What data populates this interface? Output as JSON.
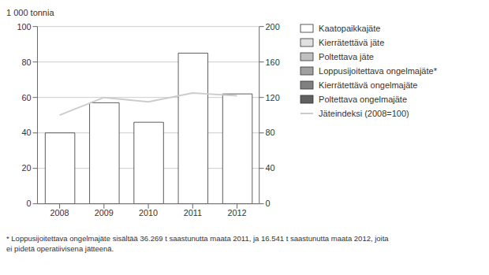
{
  "chart_data": {
    "type": "bar",
    "y_label": "1 000 tonnia",
    "categories": [
      "2008",
      "2009",
      "2010",
      "2011",
      "2012"
    ],
    "stacked": true,
    "grid": true,
    "legend": "right",
    "ylim": [
      0,
      100
    ],
    "yticks": [
      0,
      20,
      40,
      60,
      80,
      100
    ],
    "y2lim": [
      0,
      200
    ],
    "y2ticks": [
      0,
      40,
      80,
      120,
      160,
      200
    ],
    "series": [
      {
        "name": "Kaatopaikkajäte",
        "type": "bar",
        "color": "#ffffff",
        "values": [
          40,
          57,
          46,
          85,
          62
        ]
      },
      {
        "name": "Kierrätettävä jäte",
        "type": "bar",
        "color": "#e0e0e0",
        "values": [
          null,
          null,
          null,
          null,
          null
        ]
      },
      {
        "name": "Poltettava jäte",
        "type": "bar",
        "color": "#c0c0c0",
        "values": [
          null,
          null,
          null,
          null,
          null
        ]
      },
      {
        "name": "Loppusijoitettava ongelmajäte*",
        "type": "bar",
        "color": "#a0a0a0",
        "values": [
          null,
          null,
          null,
          null,
          null
        ]
      },
      {
        "name": "Kierrätettävä ongelmajäte",
        "type": "bar",
        "color": "#808080",
        "values": [
          null,
          null,
          null,
          null,
          null
        ]
      },
      {
        "name": "Poltettava ongelmajäte",
        "type": "bar",
        "color": "#606060",
        "values": [
          null,
          null,
          null,
          null,
          null
        ]
      },
      {
        "name": "Jäteindeksi (2008=100)",
        "type": "line",
        "axis": "y2",
        "color": "#cccccc",
        "values": [
          100,
          120,
          115,
          125,
          122
        ]
      }
    ],
    "annotations": [
      "* Loppusijoitettava ongelmajäte sisältää 36.269 t saastunutta maata 2011, ja 16.541 t saastunutta maata 2012, joita",
      "ei pidetä operatiivisena jätteenä."
    ]
  }
}
